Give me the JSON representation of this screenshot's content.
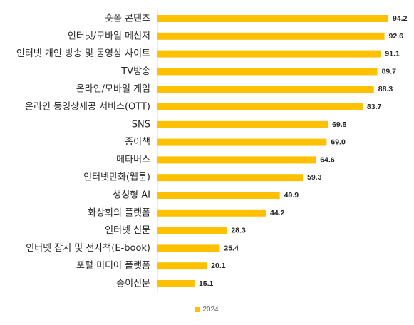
{
  "chart_data": {
    "type": "bar",
    "orientation": "horizontal",
    "categories": [
      "숏폼 콘텐츠",
      "인터넷/모바일 메신저",
      "인터넷 개인 방송 및 동영상 사이트",
      "TV방송",
      "온라인/모바일 게임",
      "온라인 동영상제공 서비스(OTT)",
      "SNS",
      "종이책",
      "메타버스",
      "인터넷만화(웹툰)",
      "생성형 AI",
      "화상회의 플랫폼",
      "인터넷 신문",
      "인터넷 잡지 및 전자책(E-book)",
      "포털 미디어 플랫폼",
      "종이신문"
    ],
    "series": [
      {
        "name": "2024",
        "color": "#FFC000",
        "values": [
          94.2,
          92.6,
          91.1,
          89.7,
          88.3,
          83.7,
          69.5,
          69.0,
          64.6,
          59.3,
          49.9,
          44.2,
          28.3,
          25.4,
          20.1,
          15.1
        ],
        "labels": [
          "94.2",
          "92.6",
          "91.1",
          "89.7",
          "88.3",
          "83.7",
          "69.5",
          "69.0",
          "64.6",
          "59.3",
          "49.9",
          "44.2",
          "28.3",
          "25.4",
          "20.1",
          "15.1"
        ]
      }
    ],
    "title": "",
    "xlabel": "",
    "ylabel": "",
    "xlim": [
      0,
      100
    ],
    "grid": false,
    "legend": "bottom"
  }
}
